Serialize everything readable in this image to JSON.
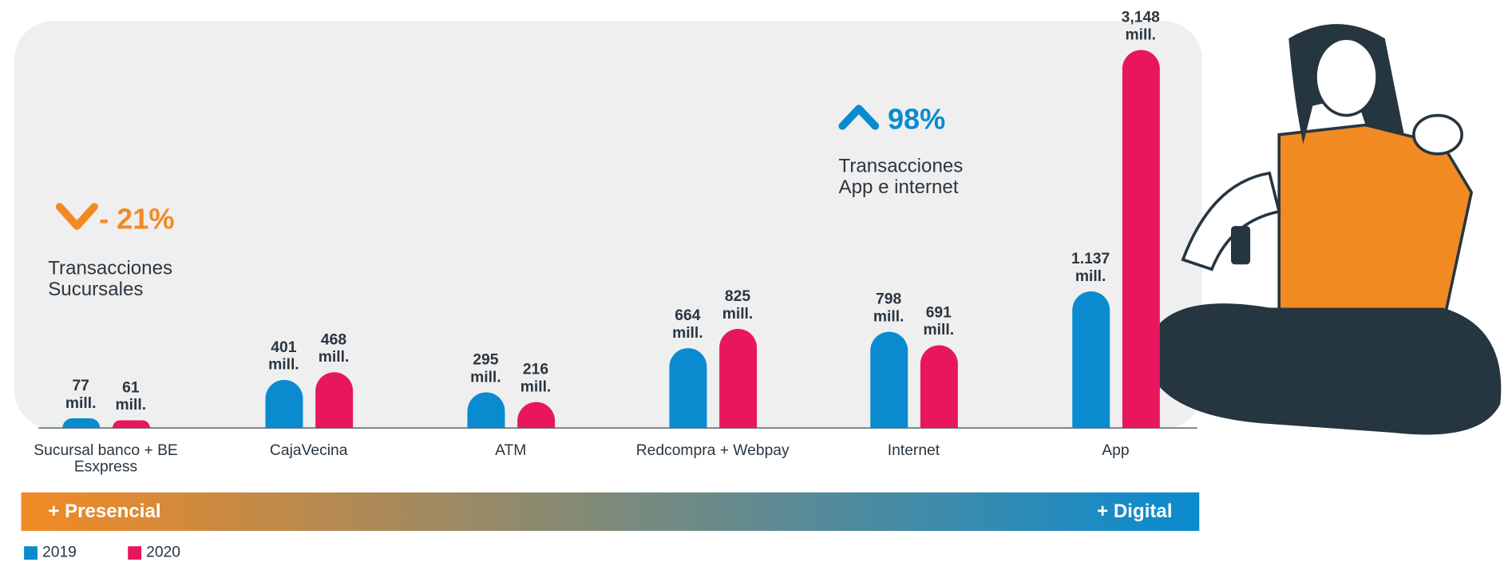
{
  "chart_data": {
    "type": "bar",
    "categories": [
      "Sucursal banco + BE Esxpress",
      "CajaVecina",
      "ATM",
      "Redcompra + Webpay",
      "Internet",
      "App"
    ],
    "series": [
      {
        "name": "2019",
        "color": "#0a8bd0",
        "values": [
          77,
          401,
          295,
          664,
          798,
          1137
        ],
        "value_labels": [
          "77 mill.",
          "401 mill.",
          "295 mill.",
          "664 mill.",
          "798 mill.",
          "1.137 mill."
        ]
      },
      {
        "name": "2020",
        "color": "#e8175d",
        "values": [
          61,
          468,
          216,
          825,
          691,
          3148
        ],
        "value_labels": [
          "61 mill.",
          "468 mill.",
          "216 mill.",
          "825 mill.",
          "691 mill.",
          "3,148 mill."
        ]
      }
    ],
    "ylim": [
      0,
      3148
    ],
    "annotations": [
      "- 21%",
      "Transacciones Sucursales",
      "98%",
      "Transacciones App e internet"
    ],
    "scale_labels": [
      "+ Presencial",
      "+ Digital"
    ],
    "scale_colors": [
      "#f28a24",
      "#0a8bd0"
    ],
    "annotation_colors": [
      "#f28a24",
      "#0a8bd0"
    ]
  }
}
